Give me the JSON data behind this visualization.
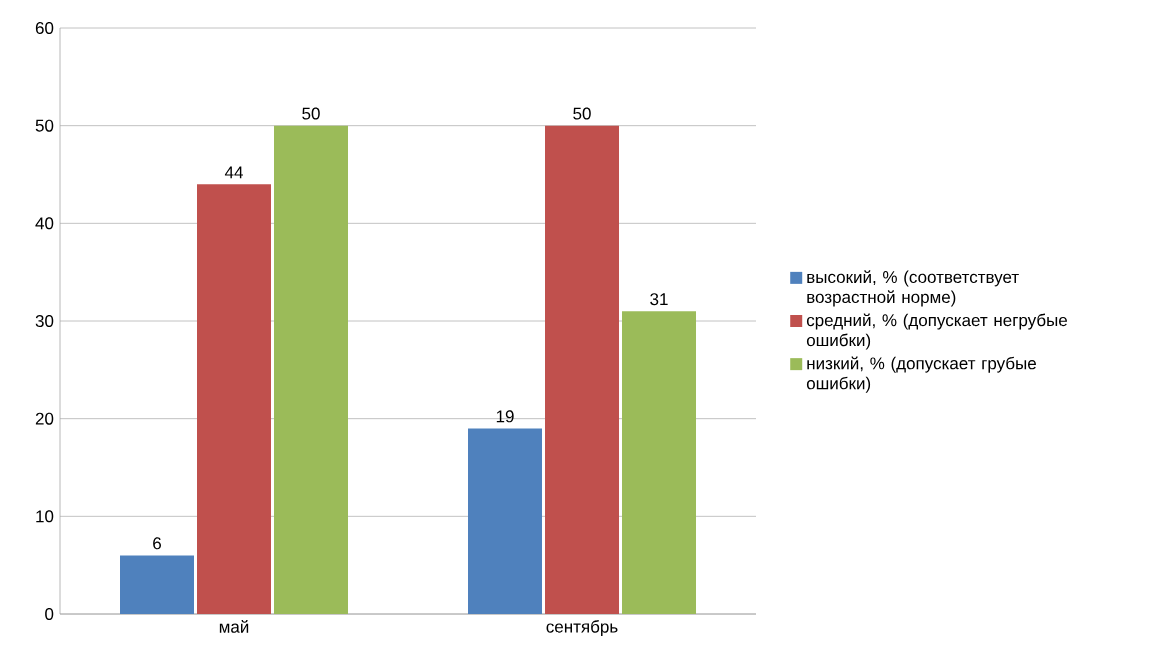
{
  "chart_data": {
    "type": "bar",
    "categories": [
      "май",
      "сентябрь"
    ],
    "series": [
      {
        "name": "высокий, % (соответствует возрастной норме)",
        "color": "#4f81bd",
        "values": [
          6,
          19
        ]
      },
      {
        "name": "средний, % (допускает негрубые ошибки)",
        "color": "#c0504d",
        "values": [
          44,
          50
        ]
      },
      {
        "name": "низкий, % (допускает грубые ошибки)",
        "color": "#9bbb59",
        "values": [
          50,
          31
        ]
      }
    ],
    "ylim": [
      0,
      60
    ],
    "yticks": [
      0,
      10,
      20,
      30,
      40,
      50,
      60
    ],
    "grid": "y",
    "legend": "right",
    "data_labels": true
  }
}
